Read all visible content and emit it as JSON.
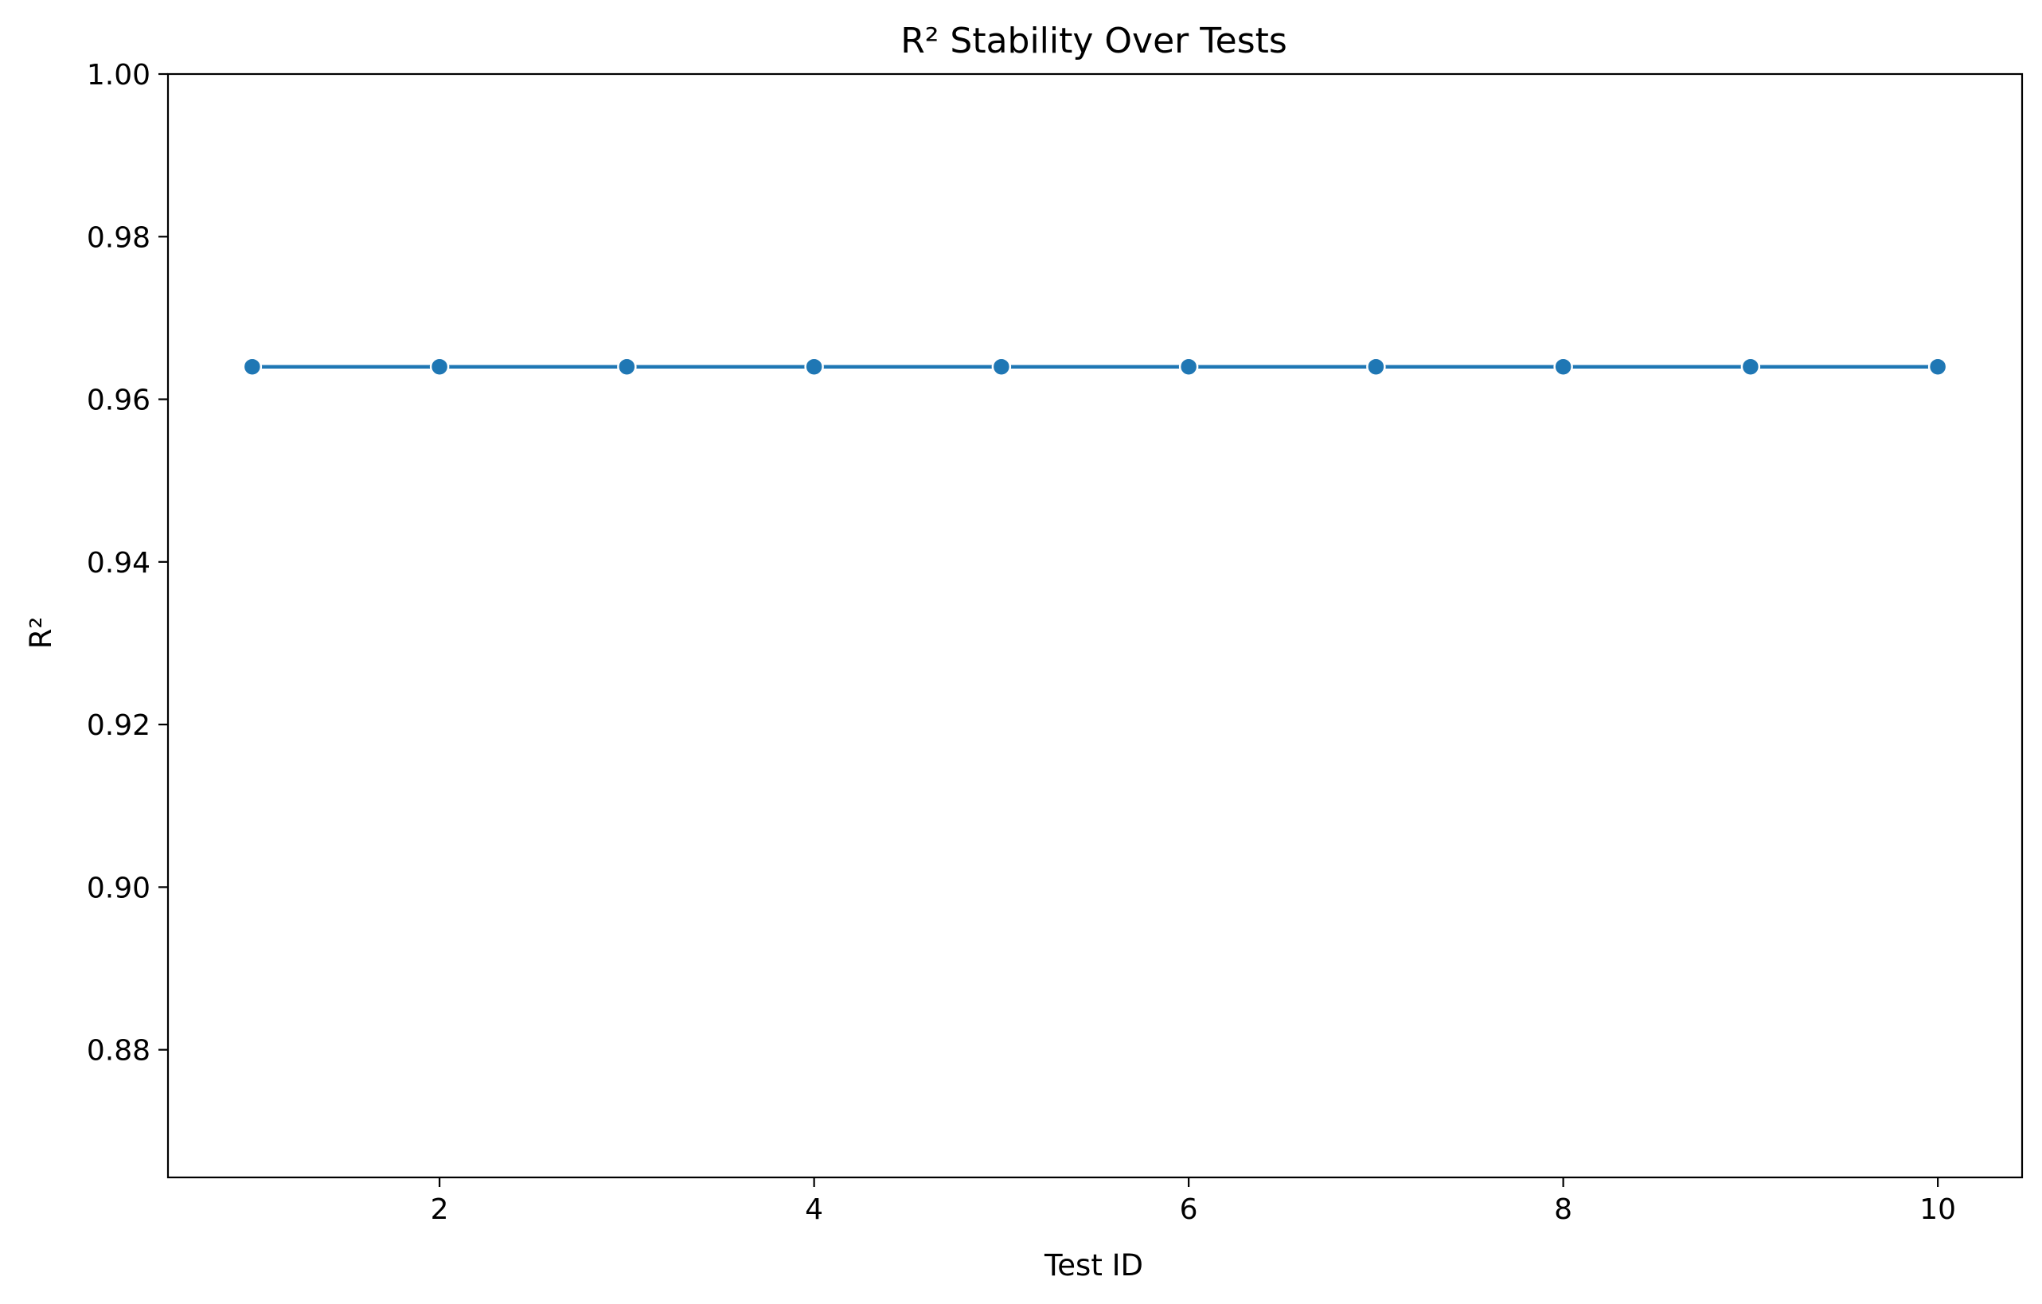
{
  "chart_data": {
    "type": "line",
    "title": "R² Stability Over Tests",
    "xlabel": "Test ID",
    "ylabel": "R²",
    "x": [
      1,
      2,
      3,
      4,
      5,
      6,
      7,
      8,
      9,
      10
    ],
    "series": [
      {
        "values": [
          0.964,
          0.964,
          0.964,
          0.964,
          0.964,
          0.964,
          0.964,
          0.964,
          0.964,
          0.964
        ],
        "color": "#1f77b4"
      }
    ],
    "xlim": [
      0.55,
      10.45
    ],
    "ylim": [
      0.8643,
      1.0
    ],
    "xticks": [
      2,
      4,
      6,
      8,
      10
    ],
    "yticks": [
      0.88,
      0.9,
      0.92,
      0.94,
      0.96,
      0.98,
      1.0
    ],
    "ytick_labels": [
      "0.88",
      "0.90",
      "0.92",
      "0.94",
      "0.96",
      "0.98",
      "1.00"
    ],
    "grid": false,
    "legend": "none"
  }
}
